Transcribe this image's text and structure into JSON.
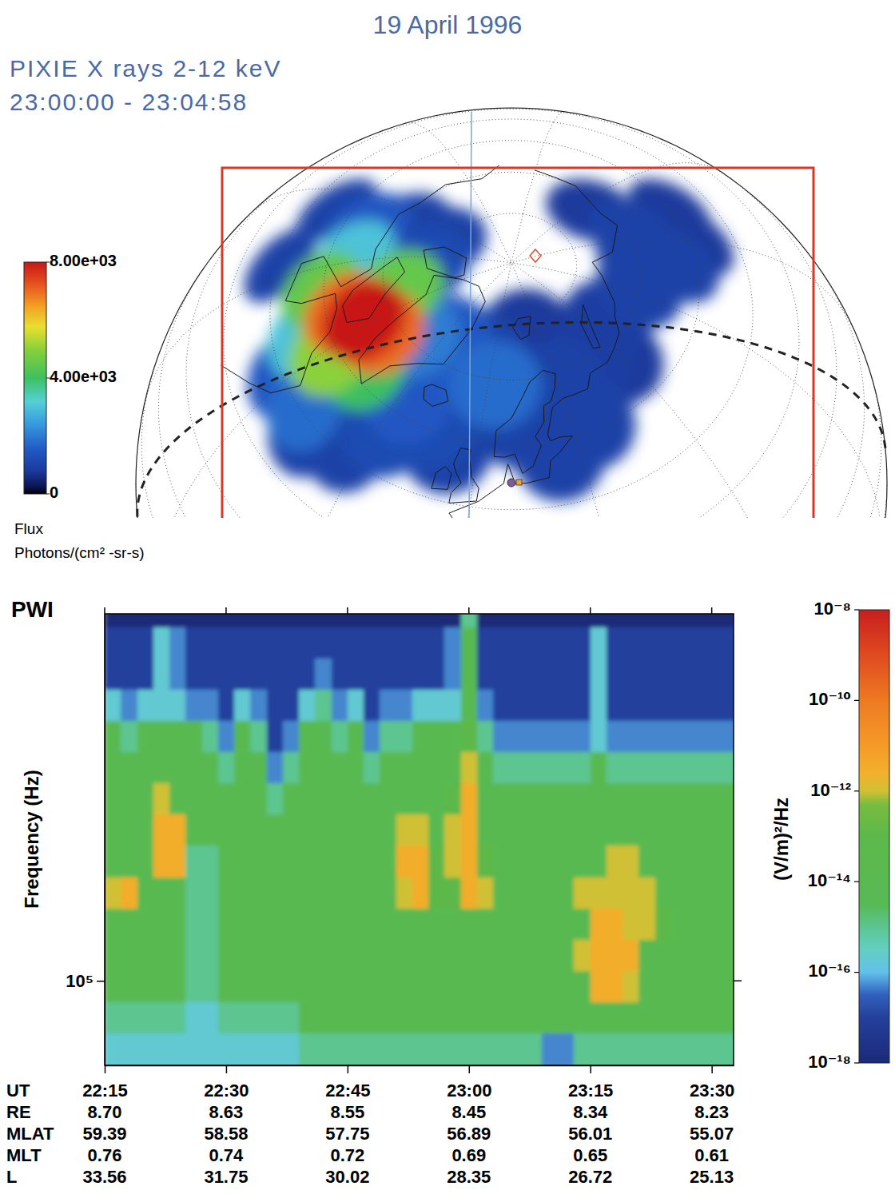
{
  "title": "19 April 1996",
  "chart_data": [
    {
      "type": "map",
      "title": "PIXIE X rays 2-12 keV",
      "subtitle": "23:00:00 - 23:04:58",
      "points": {
        "lon": [
          22,
          58,
          145,
          120.5,
          133.6,
          48,
          69,
          111,
          125,
          93.5,
          109.5,
          -95,
          -113,
          -111,
          -106,
          -35,
          -9,
          24,
          30,
          13,
          -8,
          36,
          -46,
          -84,
          -16,
          -28,
          -62,
          -29,
          -27,
          -107.5,
          3,
          -51,
          -42,
          -93,
          -68.5,
          -47,
          -82,
          -71,
          -59,
          -69.6,
          -54,
          -63
        ],
        "lat": [
          78,
          67,
          72.5,
          58.5,
          59.3,
          69.7,
          72.6,
          69.7,
          69.4,
          69.9,
          63.1,
          50,
          56,
          71,
          78,
          51,
          58,
          57.5,
          68.3,
          63.1,
          74,
          60.9,
          48.3,
          76.6,
          60.9,
          56.4,
          50,
          74,
          62.5,
          64.4,
          69.2,
          50.6,
          71.1,
          64.2,
          55.7,
          62,
          59.2,
          72.4,
          58.4,
          63,
          67.2,
          65.5
        ],
        "values": [
          800,
          800,
          800,
          800,
          800,
          900,
          900,
          1000,
          1000,
          1000,
          1000,
          1000,
          1000,
          1000,
          1000,
          1000,
          1000,
          1000,
          1000,
          1000,
          1000,
          1000,
          1000,
          1200,
          1200,
          1200,
          1500,
          1500,
          1500,
          1500,
          1800,
          1800,
          2000,
          3000,
          3000,
          4000,
          4500,
          4500,
          5000,
          7000,
          7000,
          8000
        ]
      },
      "colorbar": {
        "title": "Flux",
        "units": "Photons/(cm² -sr-s)",
        "range": [
          0,
          8000
        ],
        "ticks": [
          {
            "value": 8000,
            "label": "8.00e+03"
          },
          {
            "value": 4000,
            "label": "4.00e+03"
          },
          0
        ]
      }
    },
    {
      "type": "heatmap",
      "title": "PWI",
      "x_label": "UT",
      "y_label": "Frequency (Hz)",
      "log": "y",
      "xlim": [
        1335,
        1412.7
      ],
      "xticks": [
        {
          "value": 1335,
          "label": "22:15"
        },
        {
          "value": 1350,
          "label": "22:30"
        },
        {
          "value": 1365,
          "label": "22:45"
        },
        {
          "value": 1380,
          "label": "23:00"
        },
        {
          "value": 1395,
          "label": "23:15"
        },
        {
          "value": 1410,
          "label": "23:30"
        }
      ],
      "ylim": [
        62700,
        760000
      ],
      "yticks": [
        {
          "value": 100000,
          "label": "10⁵"
        }
      ],
      "x_bins": [
        1335,
        1337,
        1339,
        1341,
        1343,
        1345,
        1347,
        1349,
        1351,
        1353,
        1355,
        1357,
        1359,
        1361,
        1363,
        1365,
        1367,
        1369,
        1371,
        1373,
        1375,
        1377,
        1379,
        1381,
        1383,
        1385,
        1387,
        1389,
        1391,
        1393,
        1395,
        1397,
        1399,
        1401,
        1403,
        1405,
        1407,
        1409,
        1411,
        1413
      ],
      "y_bins": [
        62000,
        74989,
        89125,
        105925,
        125893,
        149624,
        177828,
        211349,
        251189,
        298538,
        354813,
        421697,
        501187,
        595662,
        707946,
        841395
      ],
      "cells": [
        [
          2e-16,
          1e-15,
          1e-14,
          1e-14,
          1e-14,
          1e-12,
          1e-14,
          1e-14,
          1e-14,
          1e-14,
          1e-14,
          2e-16,
          1e-17,
          1e-17,
          1e-18
        ],
        [
          2e-16,
          1e-15,
          1e-14,
          1e-14,
          1e-14,
          3e-12,
          1e-14,
          1e-14,
          1e-14,
          1e-14,
          1e-15,
          5e-17,
          1e-17,
          1e-17,
          1e-18
        ],
        [
          2e-16,
          1e-15,
          1e-14,
          1e-14,
          1e-14,
          1e-14,
          1e-14,
          1e-14,
          1e-14,
          1e-14,
          1e-14,
          2e-16,
          1e-17,
          1e-17,
          1e-18
        ],
        [
          2e-16,
          1e-15,
          1e-14,
          1e-14,
          1e-14,
          1e-14,
          3e-12,
          3e-12,
          1e-12,
          1e-14,
          1e-14,
          2e-16,
          2e-16,
          2e-16,
          1e-18
        ],
        [
          2e-16,
          1e-15,
          1e-14,
          1e-14,
          1e-14,
          1e-14,
          3e-12,
          3e-12,
          1e-14,
          1e-14,
          1e-14,
          2e-16,
          5e-17,
          5e-17,
          1e-18
        ],
        [
          2e-16,
          2e-16,
          1e-15,
          1e-15,
          1e-15,
          1e-15,
          1e-15,
          1e-14,
          1e-14,
          1e-14,
          1e-14,
          5e-17,
          1e-17,
          1e-17,
          1e-18
        ],
        [
          2e-16,
          2e-16,
          1e-15,
          1e-15,
          1e-15,
          1e-15,
          1e-15,
          1e-14,
          1e-14,
          1e-14,
          1e-15,
          5e-17,
          1e-17,
          1e-17,
          1e-18
        ],
        [
          2e-16,
          1e-15,
          1e-14,
          1e-14,
          1e-14,
          1e-14,
          1e-14,
          1e-14,
          1e-14,
          1e-15,
          5e-17,
          1e-17,
          1e-17,
          1e-17,
          1e-18
        ],
        [
          2e-16,
          1e-15,
          1e-14,
          1e-14,
          1e-14,
          1e-14,
          1e-14,
          1e-14,
          1e-14,
          1e-14,
          1e-14,
          2e-16,
          1e-17,
          1e-17,
          1e-18
        ],
        [
          2e-16,
          1e-15,
          1e-14,
          1e-14,
          1e-14,
          1e-14,
          1e-14,
          1e-14,
          1e-14,
          1e-14,
          1e-15,
          5e-17,
          1e-17,
          1e-17,
          1e-18
        ],
        [
          2e-16,
          1e-15,
          1e-14,
          1e-14,
          1e-14,
          1e-14,
          1e-14,
          1e-14,
          1e-15,
          5e-17,
          1e-17,
          1e-17,
          1e-17,
          1e-17,
          1e-18
        ],
        [
          2e-16,
          1e-15,
          1e-14,
          1e-14,
          1e-14,
          1e-14,
          1e-14,
          1e-14,
          1e-14,
          1e-15,
          5e-17,
          1e-17,
          1e-17,
          1e-17,
          1e-18
        ],
        [
          1e-15,
          1e-14,
          1e-14,
          1e-14,
          1e-14,
          1e-14,
          1e-14,
          1e-14,
          1e-14,
          1e-14,
          1e-14,
          2e-16,
          1e-17,
          1e-17,
          1e-18
        ],
        [
          1e-15,
          1e-14,
          1e-14,
          1e-14,
          1e-14,
          1e-14,
          1e-14,
          1e-14,
          1e-14,
          1e-14,
          1e-14,
          1e-15,
          5e-17,
          1e-17,
          1e-18
        ],
        [
          1e-15,
          1e-14,
          1e-14,
          1e-14,
          1e-14,
          1e-14,
          1e-14,
          1e-14,
          1e-14,
          1e-14,
          1e-15,
          5e-17,
          1e-17,
          1e-17,
          1e-18
        ],
        [
          1e-15,
          1e-14,
          1e-14,
          1e-14,
          1e-14,
          1e-14,
          1e-14,
          1e-14,
          1e-14,
          1e-14,
          1e-14,
          2e-16,
          1e-17,
          1e-17,
          1e-18
        ],
        [
          1e-15,
          1e-14,
          1e-14,
          1e-14,
          1e-14,
          1e-14,
          1e-14,
          1e-14,
          1e-14,
          1e-15,
          5e-17,
          1e-17,
          1e-17,
          1e-17,
          1e-18
        ],
        [
          1e-15,
          1e-14,
          1e-14,
          1e-14,
          1e-14,
          1e-14,
          1e-14,
          1e-14,
          1e-14,
          1e-14,
          1e-15,
          5e-17,
          1e-17,
          1e-17,
          1e-18
        ],
        [
          1e-15,
          1e-14,
          1e-14,
          1e-14,
          1e-14,
          1e-12,
          3e-12,
          1e-12,
          1e-14,
          1e-14,
          1e-15,
          5e-17,
          1e-17,
          1e-17,
          1e-18
        ],
        [
          1e-15,
          1e-14,
          1e-14,
          1e-14,
          1e-14,
          3e-12,
          3e-12,
          1e-12,
          1e-14,
          1e-14,
          1e-14,
          2e-16,
          1e-17,
          1e-17,
          1e-18
        ],
        [
          1e-15,
          1e-14,
          1e-14,
          1e-14,
          1e-14,
          1e-13,
          1e-13,
          1e-14,
          1e-14,
          1e-14,
          1e-14,
          2e-16,
          1e-17,
          1e-17,
          1e-18
        ],
        [
          1e-15,
          1e-14,
          1e-14,
          1e-14,
          1e-14,
          1e-13,
          1e-12,
          1e-12,
          1e-13,
          1e-14,
          1e-14,
          2e-16,
          5e-17,
          5e-17,
          1e-18
        ],
        [
          1e-15,
          1e-14,
          1e-14,
          1e-14,
          1e-14,
          3e-12,
          3e-12,
          3e-12,
          3e-12,
          1e-12,
          1e-13,
          1e-14,
          1e-14,
          1e-14,
          1e-15
        ],
        [
          1e-15,
          1e-14,
          1e-14,
          1e-14,
          1e-14,
          1e-12,
          1e-13,
          1e-14,
          1e-14,
          1e-14,
          1e-15,
          5e-17,
          1e-17,
          1e-17,
          1e-18
        ],
        [
          1e-15,
          1e-14,
          1e-14,
          1e-14,
          1e-14,
          1e-14,
          1e-14,
          1e-14,
          1e-14,
          1e-15,
          5e-17,
          1e-17,
          1e-17,
          1e-17,
          1e-18
        ],
        [
          1e-15,
          1e-14,
          1e-14,
          1e-14,
          1e-14,
          1e-14,
          1e-14,
          1e-14,
          1e-14,
          1e-15,
          5e-17,
          1e-17,
          1e-17,
          1e-17,
          1e-18
        ],
        [
          1e-15,
          1e-14,
          1e-14,
          1e-14,
          1e-14,
          1e-14,
          1e-14,
          1e-14,
          1e-14,
          1e-15,
          5e-17,
          1e-17,
          1e-17,
          1e-17,
          1e-18
        ],
        [
          5e-17,
          1e-14,
          1e-14,
          1e-14,
          1e-14,
          1e-14,
          1e-14,
          1e-14,
          1e-14,
          1e-15,
          5e-17,
          1e-17,
          1e-17,
          1e-17,
          1e-18
        ],
        [
          5e-17,
          1e-14,
          1e-14,
          1e-14,
          1e-14,
          1e-14,
          1e-14,
          1e-14,
          1e-14,
          1e-15,
          5e-17,
          1e-17,
          1e-17,
          1e-17,
          1e-18
        ],
        [
          1e-15,
          1e-14,
          1e-14,
          1e-12,
          1e-14,
          1e-12,
          1e-14,
          1e-14,
          1e-14,
          1e-15,
          5e-17,
          1e-17,
          1e-17,
          1e-17,
          1e-18
        ],
        [
          1e-15,
          1e-14,
          3e-12,
          3e-12,
          3e-12,
          1e-12,
          1e-14,
          1e-14,
          1e-14,
          1e-14,
          2e-16,
          2e-16,
          2e-16,
          2e-16,
          1e-18
        ],
        [
          1e-15,
          1e-14,
          3e-12,
          3e-12,
          3e-12,
          1e-12,
          1e-12,
          1e-14,
          1e-14,
          1e-15,
          5e-17,
          1e-17,
          1e-17,
          1e-17,
          1e-18
        ],
        [
          1e-15,
          1e-14,
          1e-12,
          3e-12,
          1e-12,
          1e-12,
          1e-12,
          1e-14,
          1e-14,
          1e-15,
          5e-17,
          1e-17,
          1e-17,
          1e-17,
          1e-18
        ],
        [
          1e-15,
          1e-14,
          1e-14,
          1e-14,
          1e-12,
          1e-12,
          1e-14,
          1e-14,
          1e-14,
          1e-15,
          5e-17,
          1e-17,
          1e-17,
          1e-17,
          1e-18
        ],
        [
          1e-15,
          1e-14,
          1e-14,
          1e-14,
          1e-13,
          1e-14,
          1e-14,
          1e-14,
          1e-14,
          1e-15,
          5e-17,
          1e-17,
          1e-17,
          1e-17,
          1e-18
        ],
        [
          1e-15,
          1e-14,
          1e-14,
          1e-14,
          1e-14,
          1e-14,
          1e-14,
          1e-14,
          1e-14,
          1e-15,
          5e-17,
          1e-17,
          1e-17,
          1e-17,
          1e-18
        ],
        [
          1e-15,
          1e-14,
          1e-14,
          1e-14,
          1e-14,
          1e-14,
          1e-14,
          1e-14,
          1e-14,
          1e-15,
          5e-17,
          1e-17,
          1e-17,
          1e-17,
          1e-18
        ],
        [
          1e-15,
          1e-14,
          1e-14,
          1e-14,
          1e-14,
          1e-14,
          1e-14,
          1e-14,
          1e-14,
          1e-15,
          5e-17,
          1e-17,
          1e-17,
          1e-17,
          1e-18
        ],
        [
          1e-15,
          1e-14,
          1e-14,
          1e-14,
          1e-14,
          1e-14,
          1e-14,
          1e-14,
          1e-14,
          1e-15,
          5e-17,
          1e-17,
          1e-17,
          1e-17,
          1e-18
        ]
      ],
      "colorbar": {
        "title": "(V/m)²/Hz",
        "range": [
          1e-18,
          1e-08
        ],
        "ticks": [
          {
            "value": 1e-08,
            "label": "10⁻⁸"
          },
          {
            "value": 1e-10,
            "label": "10⁻¹⁰"
          },
          {
            "value": 1e-12,
            "label": "10⁻¹²"
          },
          {
            "value": 1e-14,
            "label": "10⁻¹⁴"
          },
          {
            "value": 1e-16,
            "label": "10⁻¹⁶"
          },
          {
            "value": 1e-18,
            "label": "10⁻¹⁸"
          }
        ]
      },
      "ephemeris": [
        {
          "label": "RE",
          "values": [
            "8.70",
            "8.63",
            "8.55",
            "8.45",
            "8.34",
            "8.23"
          ]
        },
        {
          "label": "MLAT",
          "values": [
            "59.39",
            "58.58",
            "57.75",
            "56.89",
            "56.01",
            "55.07"
          ]
        },
        {
          "label": "MLT",
          "values": [
            "0.76",
            "0.74",
            "0.72",
            "0.69",
            "0.65",
            "0.61"
          ]
        },
        {
          "label": "L",
          "values": [
            "33.56",
            "31.75",
            "30.02",
            "28.35",
            "26.72",
            "25.13"
          ]
        }
      ]
    }
  ]
}
